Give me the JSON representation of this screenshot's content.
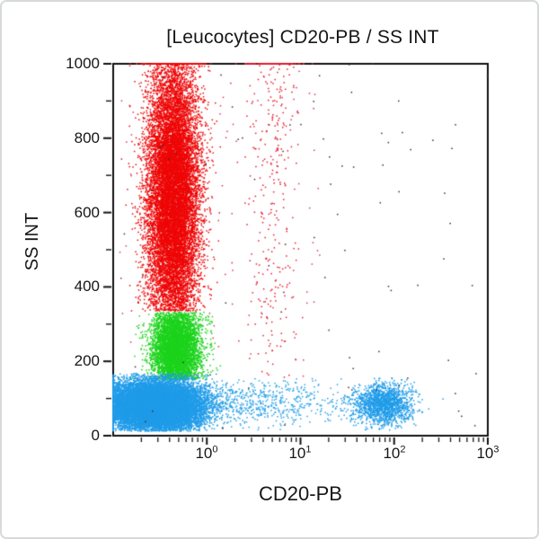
{
  "frame": {
    "background": "#ffffff",
    "border_color": "#d7dbd7"
  },
  "chart_data": {
    "type": "scatter",
    "subtype": "flow-cytometry-dot-plot",
    "title": "[Leucocytes] CD20-PB / SS INT",
    "xlabel": "CD20-PB",
    "ylabel": "SS INT",
    "x_scale": "log10",
    "x_log_range": [
      -1,
      3
    ],
    "y_range": [
      0,
      1000
    ],
    "x_tick_base": "10",
    "x_tick_exponents": [
      "0",
      "1",
      "2",
      "3"
    ],
    "x_major_ticks_log": [
      0,
      1,
      2,
      3
    ],
    "y_major_ticks": [
      1000,
      800,
      600,
      400,
      200,
      0
    ],
    "y_minor_tick_step": 100,
    "axis_color": "#111111",
    "grid": false,
    "legend": null,
    "populations": [
      {
        "name": "neutrophil-granulocytes",
        "color": "#ee0606",
        "count": 14000,
        "x": {
          "dist": "normal",
          "mean": -0.36,
          "sd": 0.14
        },
        "y": {
          "dist": "normal",
          "mean": 640,
          "sd": 195,
          "min": 335,
          "trunc": "resample"
        }
      },
      {
        "name": "eosinophil-streak",
        "color": "#e81a2e",
        "count": 430,
        "x": {
          "dist": "normal",
          "mean": 0.7,
          "sd": 0.15
        },
        "y": {
          "dist": "normal",
          "mean": 820,
          "sd": 400,
          "min": 145,
          "trunc": "resample"
        }
      },
      {
        "name": "scattered-red-events",
        "color": "#d43a55",
        "count": 120,
        "x": {
          "dist": "uniform",
          "min": -0.95,
          "max": 1.25
        },
        "y": {
          "dist": "uniform",
          "min": 140,
          "max": 1000
        }
      },
      {
        "name": "monocytes",
        "color": "#1cd31c",
        "count": 5200,
        "x": {
          "dist": "normal",
          "mean": -0.33,
          "sd": 0.13
        },
        "y": {
          "dist": "normal",
          "mean": 235,
          "sd": 62,
          "min": 150,
          "max": 332,
          "trunc": "resample"
        }
      },
      {
        "name": "lymphocytes-cd20neg",
        "color": "#1f9be8",
        "count": 16000,
        "x": {
          "dist": "normal",
          "mean": -0.55,
          "sd": 0.26
        },
        "y": {
          "dist": "normal",
          "mean": 80,
          "sd": 34,
          "min": 12,
          "max": 168,
          "trunc": "resample"
        }
      },
      {
        "name": "b-cells-cd20pos",
        "color": "#1f9be8",
        "count": 1600,
        "x": {
          "dist": "normal",
          "mean": 1.88,
          "sd": 0.16
        },
        "y": {
          "dist": "normal",
          "mean": 84,
          "sd": 27,
          "min": 15,
          "max": 160,
          "trunc": "resample"
        }
      },
      {
        "name": "blue-bridge-events",
        "color": "#2ba2e8",
        "count": 620,
        "x": {
          "dist": "normal",
          "mean": 0.55,
          "sd": 0.52,
          "min": -0.2,
          "max": 1.6,
          "trunc": "resample"
        },
        "y": {
          "dist": "normal",
          "mean": 88,
          "sd": 30,
          "min": 15,
          "max": 155,
          "trunc": "resample"
        }
      },
      {
        "name": "debris-dark-events",
        "color": "#303030",
        "count": 80,
        "x": {
          "dist": "uniform",
          "min": -1,
          "max": 3
        },
        "y": {
          "dist": "uniform",
          "min": 5,
          "max": 1005
        }
      }
    ]
  }
}
